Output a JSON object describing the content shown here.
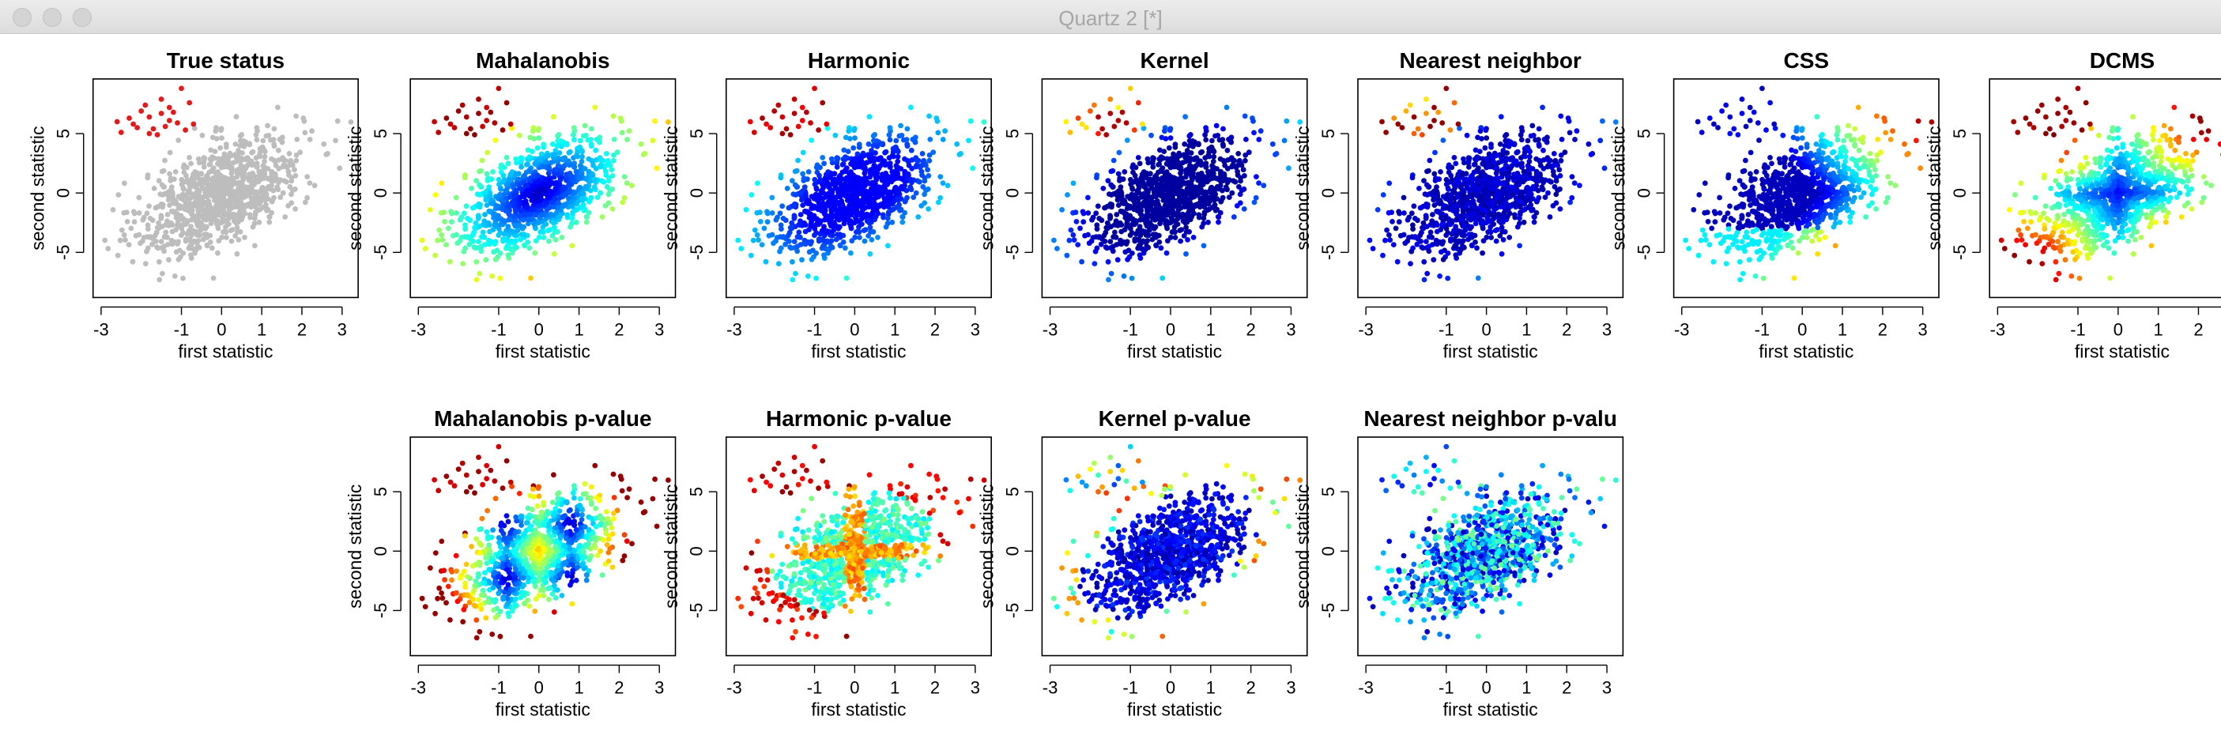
{
  "window": {
    "title": "Quartz 2 [*]"
  },
  "chart_data": {
    "type": "scatter",
    "xlabel": "first statistic",
    "ylabel": "second statistic",
    "xticks": [
      -3,
      -1,
      0,
      1,
      2,
      3
    ],
    "yticks": [
      -5,
      0,
      5
    ],
    "xlim": [
      -3.2,
      3.4
    ],
    "ylim": [
      -8.8,
      9.6
    ],
    "n_points": 1000,
    "outliers": {
      "center": [
        -1.5,
        6.0
      ],
      "points": [
        [
          -2.5,
          5.1
        ],
        [
          -2.2,
          5.8
        ],
        [
          -1.8,
          6.4
        ],
        [
          -1.5,
          7.9
        ],
        [
          -1.3,
          7.2
        ],
        [
          -1.2,
          6.8
        ],
        [
          -1.1,
          5.9
        ],
        [
          -0.9,
          5.3
        ],
        [
          -2.0,
          6.9
        ],
        [
          -1.7,
          5.4
        ],
        [
          -1.4,
          5.6
        ],
        [
          -2.3,
          6.3
        ],
        [
          -1.9,
          7.4
        ],
        [
          -0.8,
          7.6
        ],
        [
          -1.0,
          8.8
        ],
        [
          -1.6,
          4.9
        ],
        [
          -2.1,
          5.5
        ],
        [
          -1.3,
          6.1
        ],
        [
          -2.6,
          6.0
        ],
        [
          -0.7,
          5.8
        ],
        [
          -1.5,
          6.7
        ],
        [
          -1.8,
          5.0
        ]
      ]
    },
    "panels": [
      {
        "title": "True status",
        "scheme": "status"
      },
      {
        "title": "Mahalanobis",
        "scheme": "mahal"
      },
      {
        "title": "Harmonic",
        "scheme": "harmonic"
      },
      {
        "title": "Kernel",
        "scheme": "kernel"
      },
      {
        "title": "Nearest neighbor",
        "scheme": "nn"
      },
      {
        "title": "CSS",
        "scheme": "css"
      },
      {
        "title": "DCMS",
        "scheme": "dcms"
      },
      {
        "title": "Mahalanobis p-value",
        "scheme": "mahal_p"
      },
      {
        "title": "Harmonic p-value",
        "scheme": "harm_p"
      },
      {
        "title": "Kernel p-value",
        "scheme": "kern_p"
      },
      {
        "title": "Nearest neighbor p-valu",
        "scheme": "nn_p"
      }
    ],
    "colors": {
      "status_normal": "#bdbdbd",
      "status_outlier": "#e31a1c",
      "palette": "jet"
    }
  }
}
